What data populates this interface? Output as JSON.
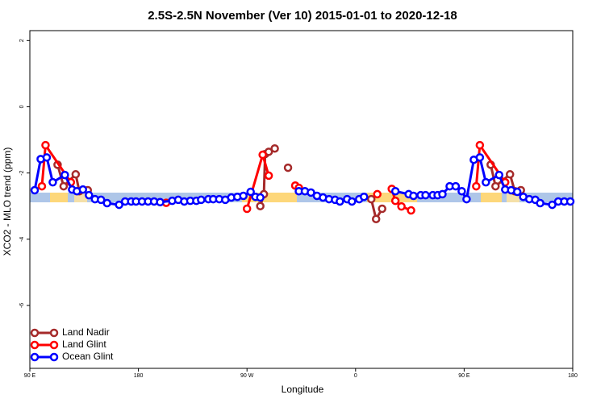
{
  "chart_data": {
    "type": "line",
    "title": "2.5S-2.5N November (Ver 10)   2015-01-01 to 2020-12-18",
    "xlabel": "Longitude",
    "ylabel": "XCO2 - MLO trend (ppm)",
    "xlim": [
      90,
      540
    ],
    "ylim": [
      -7.9,
      2.3
    ],
    "xticks": [
      {
        "value": 90,
        "label": "90 E"
      },
      {
        "value": 180,
        "label": "180"
      },
      {
        "value": 270,
        "label": "90 W"
      },
      {
        "value": 360,
        "label": "0"
      },
      {
        "value": 450,
        "label": "90 E"
      },
      {
        "value": 540,
        "label": "180"
      }
    ],
    "yticks": [
      2,
      0,
      -2,
      -4,
      -6
    ],
    "legend": "bottom-left",
    "series": [
      {
        "name": "Land Nadir",
        "color": "#a52a2a",
        "x": [
          113,
          118,
          128,
          131,
          138,
          null,
          281,
          284,
          285,
          288,
          293,
          null,
          304,
          null,
          373,
          377,
          382,
          null,
          472,
          476,
          488,
          492,
          497
        ],
        "values": [
          -1.75,
          -2.4,
          -2.04,
          -2.55,
          -2.52,
          null,
          -3.0,
          -2.64,
          -1.43,
          -1.36,
          -1.26,
          null,
          -1.84,
          null,
          -2.79,
          -3.39,
          -3.08,
          null,
          -1.75,
          -2.4,
          -2.04,
          -2.55,
          -2.52
        ]
      },
      {
        "name": "Land Glint",
        "color": "#ff0000",
        "x": [
          100,
          103,
          124,
          null,
          203,
          null,
          270,
          283,
          288,
          null,
          310,
          313,
          null,
          378,
          null,
          390,
          393,
          398,
          406,
          null,
          460,
          463,
          484
        ],
        "values": [
          -2.4,
          -1.16,
          -2.28,
          null,
          -2.9,
          null,
          -3.08,
          -1.45,
          -2.08,
          null,
          -2.38,
          -2.45,
          null,
          -2.64,
          null,
          -2.48,
          -2.84,
          -3.01,
          -3.13,
          null,
          -2.4,
          -1.16,
          -2.28
        ]
      },
      {
        "name": "Ocean Glint",
        "color": "#0000ff",
        "x": [
          94,
          99,
          104,
          109,
          119,
          125,
          129,
          134,
          139,
          144,
          149,
          154,
          164,
          169,
          174,
          178,
          183,
          188,
          193,
          198,
          208,
          213,
          218,
          223,
          228,
          232,
          238,
          242,
          247,
          252,
          257,
          262,
          267,
          273,
          277,
          281,
          null,
          313,
          318,
          323,
          328,
          333,
          338,
          343,
          347,
          353,
          357,
          363,
          367,
          null,
          393,
          404,
          408,
          414,
          418,
          424,
          428,
          432,
          438,
          443,
          448,
          452,
          458,
          463,
          468,
          479,
          484,
          489,
          494,
          499,
          504,
          509,
          513,
          523,
          528,
          533,
          538
        ],
        "values": [
          -2.52,
          -1.58,
          -1.53,
          -2.28,
          -2.06,
          -2.5,
          -2.55,
          -2.5,
          -2.67,
          -2.79,
          -2.81,
          -2.91,
          -2.96,
          -2.86,
          -2.86,
          -2.86,
          -2.86,
          -2.86,
          -2.86,
          -2.88,
          -2.84,
          -2.81,
          -2.86,
          -2.84,
          -2.84,
          -2.81,
          -2.79,
          -2.79,
          -2.79,
          -2.81,
          -2.74,
          -2.72,
          -2.69,
          -2.57,
          -2.72,
          -2.74,
          null,
          -2.55,
          -2.55,
          -2.59,
          -2.69,
          -2.74,
          -2.79,
          -2.81,
          -2.86,
          -2.79,
          -2.86,
          -2.79,
          -2.72,
          null,
          -2.55,
          -2.64,
          -2.69,
          -2.67,
          -2.67,
          -2.67,
          -2.67,
          -2.64,
          -2.4,
          -2.4,
          -2.55,
          -2.79,
          -1.6,
          -1.53,
          -2.28,
          -2.06,
          -2.5,
          -2.52,
          -2.57,
          -2.72,
          -2.79,
          -2.81,
          -2.91,
          -2.96,
          -2.86,
          -2.86,
          -2.86
        ]
      }
    ]
  }
}
